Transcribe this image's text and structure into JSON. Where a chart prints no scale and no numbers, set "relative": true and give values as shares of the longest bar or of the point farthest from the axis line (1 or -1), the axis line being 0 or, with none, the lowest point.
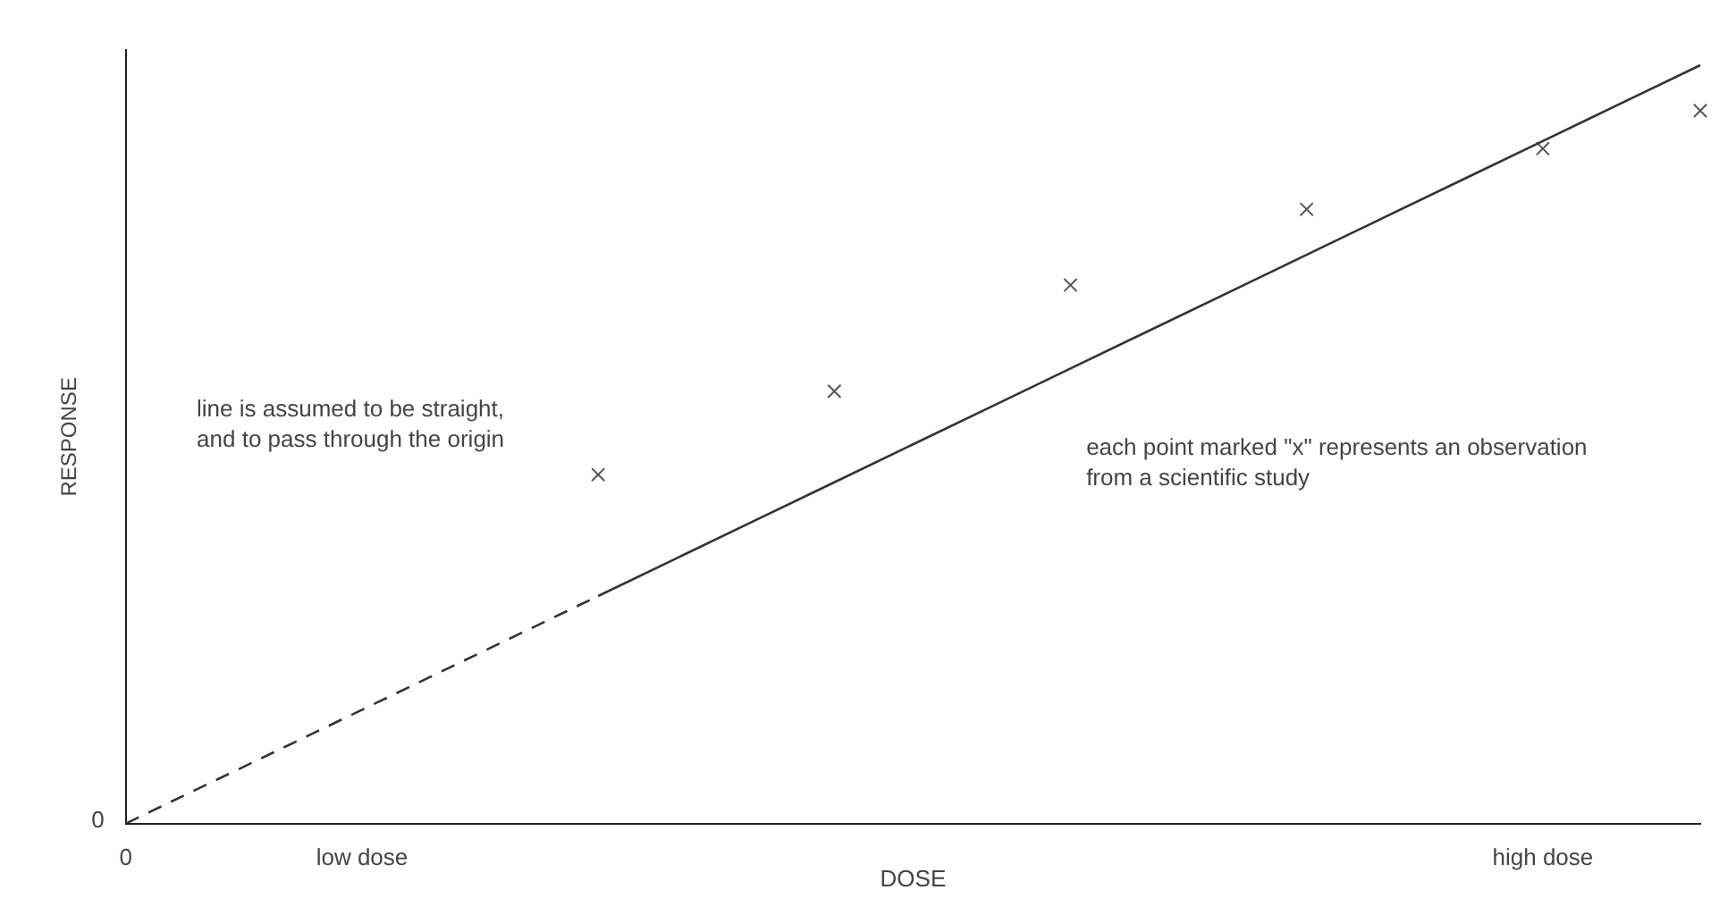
{
  "chart_data": {
    "type": "line",
    "relative": true,
    "xlabel": "DOSE",
    "ylabel": "RESPONSE",
    "categories": [
      "0",
      null,
      null,
      "low dose",
      null,
      null,
      null,
      null,
      null,
      null,
      null,
      null,
      null,
      null,
      null,
      null,
      null,
      null,
      "high dose",
      null,
      null
    ],
    "series": [
      {
        "type": "line",
        "color": "#333333",
        "line_style": "dashed",
        "marker": "none",
        "values": [
          0,
          0.05,
          0.1,
          0.15,
          0.2,
          0.25,
          0.3,
          null,
          null,
          null,
          null,
          null,
          null,
          null,
          null,
          null,
          null,
          null,
          null,
          null,
          null
        ]
      },
      {
        "type": "line",
        "color": "#333333",
        "line_style": "solid",
        "marker": "none",
        "values": [
          null,
          null,
          null,
          null,
          null,
          null,
          0.3,
          0.35,
          0.4,
          0.45,
          0.5,
          0.55,
          0.6,
          0.65,
          0.7,
          0.75,
          0.8,
          0.85,
          0.9,
          0.95,
          1
        ]
      },
      {
        "type": "scatter",
        "color": "#555555",
        "marker": "cross",
        "values": [
          null,
          null,
          null,
          null,
          null,
          null,
          0.46,
          null,
          null,
          0.57,
          null,
          null,
          0.71,
          null,
          null,
          0.81,
          null,
          null,
          0.89,
          null,
          0.94
        ]
      }
    ],
    "annotations": [
      "line is assumed to be straight, and to pass through the origin",
      "each point marked \"x\" represents an observation from a scientific study",
      "0"
    ],
    "grid": false,
    "legend": false
  }
}
